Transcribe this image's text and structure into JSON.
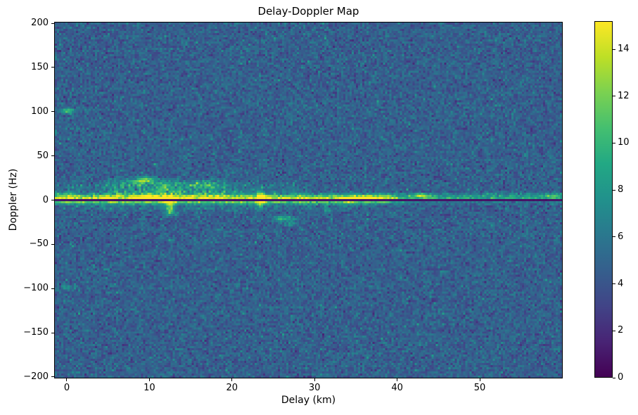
{
  "figure": {
    "background": "#ffffff"
  },
  "chart_data": {
    "type": "heatmap",
    "title": "Delay-Doppler Map",
    "xlabel": "Delay (km)",
    "ylabel": "Doppler (Hz)",
    "xlim": [
      -1.53,
      60.05
    ],
    "ylim": [
      -201.6,
      201.6
    ],
    "x_ticks": [
      0,
      10,
      20,
      30,
      40,
      50
    ],
    "y_ticks": [
      200,
      150,
      100,
      50,
      0,
      -50,
      -100,
      -150,
      -200
    ],
    "grid": false,
    "legend": "none",
    "colorbar": {
      "vmin": 0,
      "vmax": 15.2,
      "ticks": [
        0,
        2,
        4,
        6,
        8,
        10,
        12,
        14
      ],
      "colormap": "viridis",
      "position": "right"
    },
    "colormap_stops": [
      [
        0.0,
        "#440154"
      ],
      [
        0.1,
        "#482475"
      ],
      [
        0.2,
        "#414487"
      ],
      [
        0.3,
        "#355f8d"
      ],
      [
        0.4,
        "#2a788e"
      ],
      [
        0.5,
        "#21918c"
      ],
      [
        0.6,
        "#22a884"
      ],
      [
        0.7,
        "#44bf70"
      ],
      [
        0.8,
        "#7ad151"
      ],
      [
        0.9,
        "#bddf26"
      ],
      [
        1.0,
        "#fde725"
      ]
    ],
    "noise": {
      "mean": 4.6,
      "std": 0.95,
      "speckle_prob": 0.025,
      "speckle_amp": 1.6,
      "seed": 7,
      "cols": 241,
      "rows": 169
    },
    "features": [
      {
        "type": "band",
        "d0": -1.5,
        "d1": 30,
        "f0": 1,
        "f1": 22,
        "amp": 1.0,
        "patchy": true
      },
      {
        "type": "band",
        "d0": 4,
        "d1": 21,
        "f0": 2,
        "f1": 26,
        "amp": 2.0,
        "patchy": true
      },
      {
        "type": "band",
        "d0": -1.5,
        "d1": 36,
        "f0": -14,
        "f1": -2,
        "amp": 1.0,
        "patchy": true
      },
      {
        "type": "band",
        "d0": 30,
        "d1": 60.1,
        "f0": 2,
        "f1": 10,
        "amp": 0.5,
        "patchy": true
      },
      {
        "type": "hline",
        "f": 6.5,
        "th": 2.2,
        "d0": -1.5,
        "d1": 60.1,
        "amp": 1.8,
        "ampR": 1.3,
        "dEdge": 38
      },
      {
        "type": "hline",
        "f": 2.6,
        "th": 2.8,
        "d0": -1.5,
        "d1": 60.1,
        "amp": 9.0,
        "ampR": 4.2,
        "dEdge": 38
      },
      {
        "type": "hline",
        "f": -2.3,
        "th": 2.6,
        "d0": -1.5,
        "d1": 60.1,
        "amp": 6.0,
        "ampR": 0.9,
        "dEdge": 38
      },
      {
        "type": "blob",
        "d": 0,
        "f": 101,
        "sd": 0.6,
        "sf": 2.2,
        "amp": 5.5
      },
      {
        "type": "blob",
        "d": 0,
        "f": -99,
        "sd": 0.55,
        "sf": 1.8,
        "amp": 3.5
      },
      {
        "type": "blob",
        "d": -0.8,
        "f": 8,
        "sd": 1.0,
        "sf": 1.6,
        "amp": 2.5
      },
      {
        "type": "blob",
        "d": 9.6,
        "f": 23,
        "sd": 0.8,
        "sf": 2.5,
        "amp": 6.5
      },
      {
        "type": "blob",
        "d": 8.5,
        "f": 20,
        "sd": 0.6,
        "sf": 2.0,
        "amp": 3.5
      },
      {
        "type": "blob",
        "d": 11.7,
        "f": 14,
        "sd": 0.8,
        "sf": 3.0,
        "amp": 3.5
      },
      {
        "type": "blob",
        "d": 16.6,
        "f": 17,
        "sd": 0.9,
        "sf": 3.0,
        "amp": 2.5
      },
      {
        "type": "blob",
        "d": 9.8,
        "f": 2,
        "sd": 1.3,
        "sf": 2.5,
        "amp": 6.0
      },
      {
        "type": "blob",
        "d": 12.4,
        "f": 1,
        "sd": 0.5,
        "sf": 3.0,
        "amp": 7.5
      },
      {
        "type": "blob",
        "d": 12.45,
        "f": -8,
        "sd": 0.35,
        "sf": 5.0,
        "amp": 6.0
      },
      {
        "type": "blob",
        "d": 12.5,
        "f": -14,
        "sd": 0.45,
        "sf": 2.2,
        "amp": 3.5
      },
      {
        "type": "blob",
        "d": 23.45,
        "f": 1,
        "sd": 0.35,
        "sf": 6.0,
        "amp": 8.0
      },
      {
        "type": "blob",
        "d": 26.3,
        "f": -21,
        "sd": 0.9,
        "sf": 2.2,
        "amp": 5.5
      },
      {
        "type": "blob",
        "d": 27.1,
        "f": -27,
        "sd": 0.5,
        "sf": 1.8,
        "amp": 3.5
      },
      {
        "type": "blob",
        "d": 31.6,
        "f": -11,
        "sd": 0.5,
        "sf": 1.8,
        "amp": 2.5
      },
      {
        "type": "blob",
        "d": 35.2,
        "f": 2,
        "sd": 1.6,
        "sf": 1.8,
        "amp": 4.5
      },
      {
        "type": "blob",
        "d": 43.1,
        "f": 5,
        "sd": 0.7,
        "sf": 1.7,
        "amp": 6.0
      },
      {
        "type": "blob",
        "d": 58.9,
        "f": 5,
        "sd": 0.9,
        "sf": 1.5,
        "amp": 3.5
      },
      {
        "type": "notch",
        "f": 0,
        "th": 1.25,
        "value": 0.7
      }
    ]
  }
}
